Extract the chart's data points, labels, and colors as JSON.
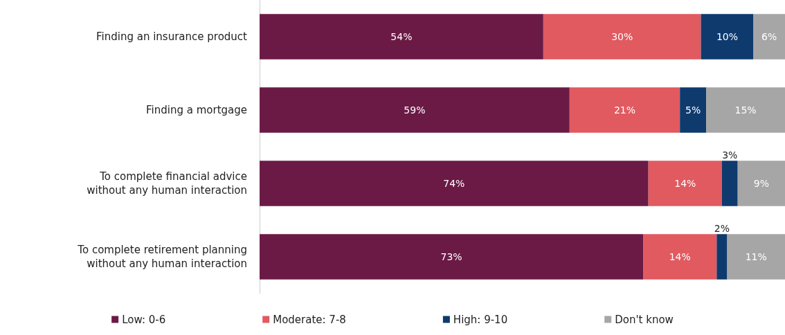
{
  "chart_data": {
    "type": "bar",
    "orientation": "horizontal",
    "stacked": true,
    "categories": [
      "Finding an insurance product",
      "Finding a mortgage",
      "To complete financial advice\nwithout any human interaction",
      "To complete retirement planning\nwithout any human interaction"
    ],
    "xlim": [
      0,
      100
    ],
    "tick_labels": "y",
    "legend": "bottom",
    "series": [
      {
        "name": "Low: 0-6",
        "color": "#6b1a45",
        "values": [
          54,
          59,
          74,
          73
        ],
        "value_labels": [
          "54%",
          "59%",
          "74%",
          "73%"
        ]
      },
      {
        "name": "Moderate: 7-8",
        "color": "#e05a60",
        "values": [
          30,
          21,
          14,
          14
        ],
        "value_labels": [
          "30%",
          "21%",
          "14%",
          "14%"
        ]
      },
      {
        "name": "High: 9-10",
        "color": "#0e3a6e",
        "values": [
          10,
          5,
          3,
          2
        ],
        "value_labels": [
          "10%",
          "5%",
          "3%",
          "2%"
        ]
      },
      {
        "name": "Don't know",
        "color": "#a6a6a6",
        "values": [
          6,
          15,
          9,
          11
        ],
        "value_labels": [
          "6%",
          "15%",
          "9%",
          "11%"
        ]
      }
    ]
  }
}
